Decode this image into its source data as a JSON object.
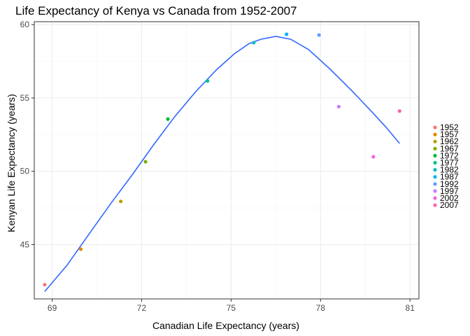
{
  "chart_data": {
    "type": "scatter",
    "title": "Life Expectancy of Kenya vs Canada from 1952-2007",
    "xlabel": "Canadian Life Expectancy (years)",
    "ylabel": "Kenyan Life Expectancy (years)",
    "xlim": [
      68.4,
      81.3
    ],
    "ylim": [
      41.3,
      60.2
    ],
    "x_ticks": [
      69,
      72,
      75,
      78,
      81
    ],
    "y_ticks": [
      45,
      50,
      55,
      60
    ],
    "grid": true,
    "legend_position": "right",
    "points": [
      {
        "year": "1952",
        "x": 68.75,
        "y": 42.27,
        "color": "#F8766D"
      },
      {
        "year": "1957",
        "x": 69.96,
        "y": 44.69,
        "color": "#DE8C00"
      },
      {
        "year": "1962",
        "x": 71.3,
        "y": 47.95,
        "color": "#B79F00"
      },
      {
        "year": "1967",
        "x": 72.13,
        "y": 50.65,
        "color": "#7CAE00"
      },
      {
        "year": "1972",
        "x": 72.88,
        "y": 53.56,
        "color": "#00BA38"
      },
      {
        "year": "1977",
        "x": 74.21,
        "y": 56.16,
        "color": "#00C08B"
      },
      {
        "year": "1982",
        "x": 75.76,
        "y": 58.77,
        "color": "#00BFC4"
      },
      {
        "year": "1987",
        "x": 76.86,
        "y": 59.34,
        "color": "#00B4F0"
      },
      {
        "year": "1992",
        "x": 77.95,
        "y": 59.29,
        "color": "#619CFF"
      },
      {
        "year": "1997",
        "x": 78.61,
        "y": 54.41,
        "color": "#C77CFF"
      },
      {
        "year": "2002",
        "x": 79.77,
        "y": 50.99,
        "color": "#F564E3"
      },
      {
        "year": "2007",
        "x": 80.65,
        "y": 54.11,
        "color": "#FF64B0"
      }
    ],
    "trend_line": {
      "color": "#3366FF",
      "x": [
        68.75,
        69.5,
        70.3,
        71.0,
        71.7,
        72.4,
        73.1,
        73.8,
        74.5,
        75.1,
        75.6,
        76.0,
        76.5,
        77.0,
        77.6,
        78.3,
        79.0,
        79.7,
        80.2,
        80.65
      ],
      "y": [
        41.8,
        43.6,
        45.9,
        47.9,
        49.8,
        51.8,
        53.7,
        55.4,
        56.9,
        58.0,
        58.7,
        59.0,
        59.2,
        59.0,
        58.3,
        57.0,
        55.6,
        54.1,
        53.0,
        51.9
      ]
    }
  }
}
